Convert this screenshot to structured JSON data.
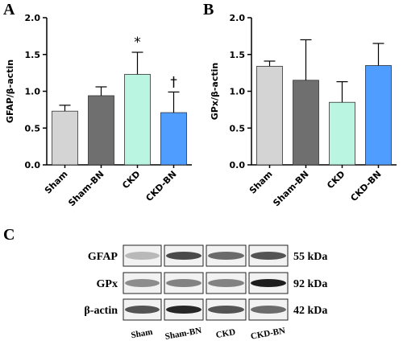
{
  "chart_data": [
    {
      "type": "bar",
      "panel_label": "A",
      "ylabel": "GFAP/β-actin",
      "categories": [
        "Sham",
        "Sham-BN",
        "CKD",
        "CKD-BN"
      ],
      "values": [
        0.73,
        0.94,
        1.23,
        0.71
      ],
      "errors": [
        0.08,
        0.12,
        0.3,
        0.28
      ],
      "colors": [
        "#d4d4d4",
        "#6f6f6f",
        "#b9f5e1",
        "#4f9dff"
      ],
      "ylim": [
        0,
        2
      ],
      "yticks": [
        {
          "value": 0,
          "label": "0.0"
        },
        0.5,
        {
          "value": 1,
          "label": "1.0"
        },
        1.5,
        {
          "value": 2,
          "label": "2.0"
        }
      ],
      "annotations": [
        {
          "text": "*",
          "category": "CKD"
        },
        {
          "text": "†",
          "category": "CKD-BN"
        }
      ]
    },
    {
      "type": "bar",
      "panel_label": "B",
      "ylabel": "GPx/β-actin",
      "categories": [
        "Sham",
        "Sham-BN",
        "CKD",
        "CKD-BN"
      ],
      "values": [
        1.34,
        1.15,
        0.85,
        1.35
      ],
      "errors": [
        0.07,
        0.55,
        0.28,
        0.3
      ],
      "colors": [
        "#d4d4d4",
        "#6f6f6f",
        "#b9f5e1",
        "#4f9dff"
      ],
      "ylim": [
        0,
        2
      ],
      "yticks": [
        {
          "value": 0,
          "label": "0.0"
        },
        0.5,
        {
          "value": 1,
          "label": "1.0"
        },
        1.5,
        {
          "value": 2,
          "label": "2.0"
        }
      ],
      "annotations": []
    }
  ],
  "blot": {
    "panel_label": "C",
    "rows": [
      {
        "label": "GFAP",
        "size": "55 kDa"
      },
      {
        "label": "GPx",
        "size": "92 kDa"
      },
      {
        "label": "β-actin",
        "size": "42 kDa"
      }
    ],
    "lanes": [
      "Sham",
      "Sham-BN",
      "CKD",
      "CKD-BN"
    ]
  }
}
